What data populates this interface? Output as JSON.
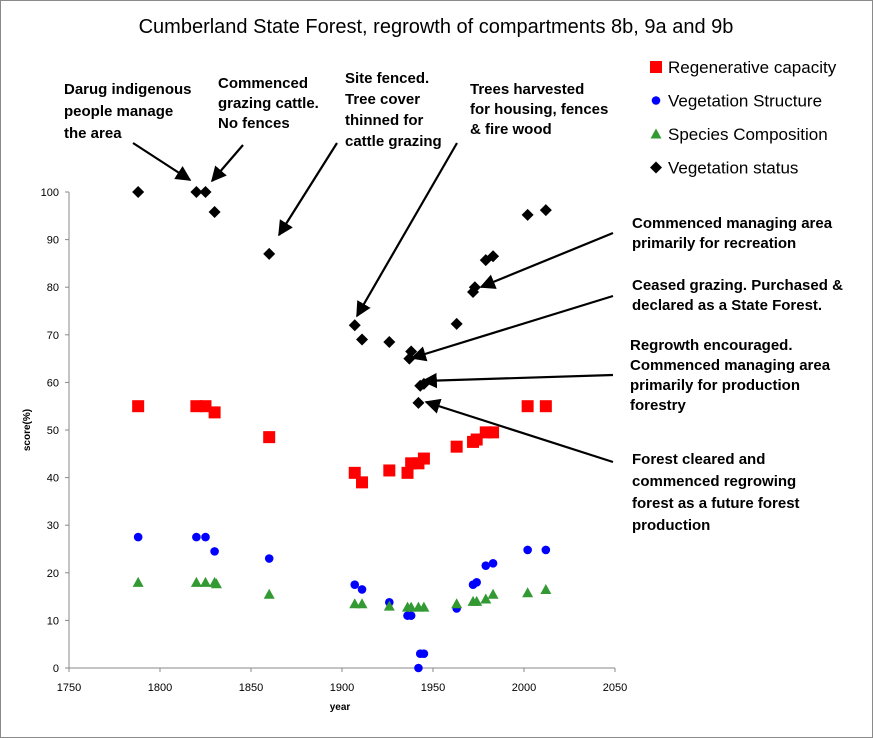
{
  "chart_data": {
    "type": "scatter",
    "title": "Cumberland State Forest, regrowth of compartments 8b, 9a and 9b",
    "xlabel": "year",
    "ylabel": "score(%)",
    "xlim": [
      1750,
      2050
    ],
    "ylim": [
      0,
      100
    ],
    "x_ticks": [
      "1750",
      "1800",
      "1850",
      "1900",
      "1950",
      "2000",
      "2050"
    ],
    "y_ticks": [
      "0",
      "10",
      "20",
      "30",
      "40",
      "50",
      "60",
      "70",
      "80",
      "90",
      "100"
    ],
    "grid": false,
    "legend_position": "top-right",
    "series": [
      {
        "name": "Regenerative capacity",
        "marker": "square",
        "color": "#ff0000",
        "points": [
          [
            1788,
            55
          ],
          [
            1820,
            55
          ],
          [
            1825,
            55
          ],
          [
            1830,
            53.7
          ],
          [
            1860,
            48.5
          ],
          [
            1907,
            41
          ],
          [
            1911,
            39
          ],
          [
            1926,
            41.5
          ],
          [
            1936,
            41
          ],
          [
            1938,
            43
          ],
          [
            1942,
            43
          ],
          [
            1945,
            44
          ],
          [
            1963,
            46.5
          ],
          [
            1972,
            47.5
          ],
          [
            1974,
            48
          ],
          [
            1979,
            49.5
          ],
          [
            1983,
            49.5
          ],
          [
            2002,
            55
          ],
          [
            2012,
            55
          ]
        ]
      },
      {
        "name": "Vegetation Structure",
        "marker": "circle",
        "color": "#0000ff",
        "points": [
          [
            1788,
            27.5
          ],
          [
            1820,
            27.5
          ],
          [
            1825,
            27.5
          ],
          [
            1830,
            24.5
          ],
          [
            1860,
            23
          ],
          [
            1907,
            17.5
          ],
          [
            1911,
            16.5
          ],
          [
            1926,
            13.8
          ],
          [
            1936,
            11
          ],
          [
            1938,
            11
          ],
          [
            1942,
            0
          ],
          [
            1943,
            3
          ],
          [
            1945,
            3
          ],
          [
            1963,
            12.5
          ],
          [
            1972,
            17.5
          ],
          [
            1974,
            18
          ],
          [
            1979,
            21.5
          ],
          [
            1983,
            22
          ],
          [
            2002,
            24.8
          ],
          [
            2012,
            24.8
          ]
        ]
      },
      {
        "name": "Species Composition",
        "marker": "triangle",
        "color": "#339933",
        "points": [
          [
            1788,
            18
          ],
          [
            1820,
            18
          ],
          [
            1825,
            18
          ],
          [
            1830,
            18
          ],
          [
            1831,
            17.7
          ],
          [
            1860,
            15.5
          ],
          [
            1907,
            13.5
          ],
          [
            1911,
            13.5
          ],
          [
            1926,
            13
          ],
          [
            1936,
            12.8
          ],
          [
            1938,
            12.8
          ],
          [
            1942,
            12.8
          ],
          [
            1945,
            12.8
          ],
          [
            1963,
            13.5
          ],
          [
            1972,
            14
          ],
          [
            1974,
            14
          ],
          [
            1979,
            14.5
          ],
          [
            1983,
            15.5
          ],
          [
            2002,
            15.8
          ],
          [
            2012,
            16.5
          ]
        ]
      },
      {
        "name": "Vegetation status",
        "marker": "diamond",
        "color": "#000000",
        "points": [
          [
            1788,
            100
          ],
          [
            1820,
            100
          ],
          [
            1825,
            100
          ],
          [
            1830,
            95.8
          ],
          [
            1860,
            87
          ],
          [
            1907,
            72
          ],
          [
            1911,
            69
          ],
          [
            1926,
            68.5
          ],
          [
            1937,
            65
          ],
          [
            1938,
            66.5
          ],
          [
            1942,
            55.7
          ],
          [
            1943,
            59.3
          ],
          [
            1945,
            59.7
          ],
          [
            1963,
            72.3
          ],
          [
            1972,
            79
          ],
          [
            1973,
            80
          ],
          [
            1979,
            85.7
          ],
          [
            1983,
            86.5
          ],
          [
            2002,
            95.2
          ],
          [
            2012,
            96.2
          ]
        ]
      }
    ],
    "annotations": [
      {
        "lines": [
          "Darug indigenous",
          "people manage",
          "the area"
        ]
      },
      {
        "lines": [
          "Commenced",
          "grazing cattle.",
          "No fences"
        ]
      },
      {
        "lines": [
          "Site fenced.",
          "Tree cover",
          "thinned for",
          "cattle grazing"
        ]
      },
      {
        "lines": [
          "Trees  harvested",
          "for housing, fences",
          "& fire wood"
        ]
      },
      {
        "lines": [
          "Commenced managing area",
          "primarily for recreation"
        ]
      },
      {
        "lines": [
          "Ceased grazing. Purchased &",
          "declared as a State Forest."
        ]
      },
      {
        "lines": [
          "Regrowth encouraged.",
          "Commenced managing area",
          "primarily for production",
          "forestry"
        ]
      },
      {
        "lines": [
          "Forest cleared and",
          "commenced regrowing",
          "forest as a future forest",
          "production"
        ]
      }
    ]
  }
}
